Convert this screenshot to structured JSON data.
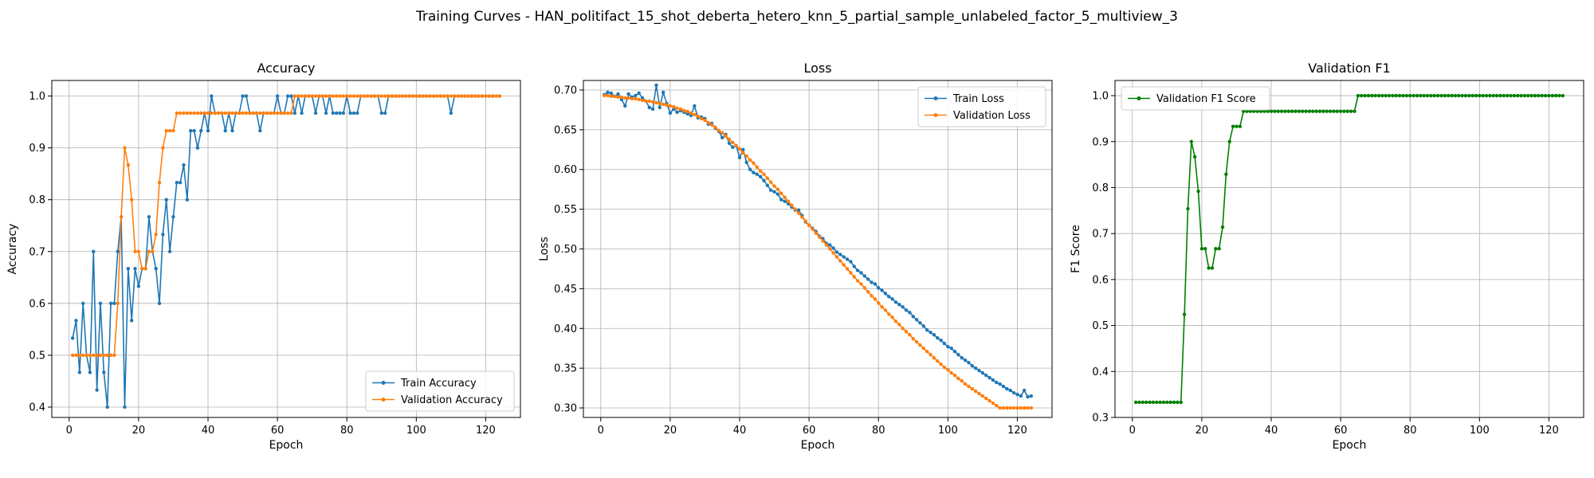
{
  "figure": {
    "suptitle": "Training Curves - HAN_politifact_15_shot_deberta_hetero_knn_5_partial_sample_unlabeled_factor_5_multiview_3"
  },
  "chart_data": [
    {
      "type": "line",
      "title": "Accuracy",
      "xlabel": "Epoch",
      "ylabel": "Accuracy",
      "xlim": [
        -5,
        130
      ],
      "ylim": [
        0.38,
        1.03
      ],
      "xticks": [
        0,
        20,
        40,
        60,
        80,
        100,
        120
      ],
      "yticks": [
        0.4,
        0.5,
        0.6,
        0.7,
        0.8,
        0.9,
        1.0
      ],
      "ytick_labels": [
        "0.4",
        "0.5",
        "0.6",
        "0.7",
        "0.8",
        "0.9",
        "1.0"
      ],
      "grid": true,
      "legend_position": "lower-right",
      "x": [
        1,
        2,
        3,
        4,
        5,
        6,
        7,
        8,
        9,
        10,
        11,
        12,
        13,
        14,
        15,
        16,
        17,
        18,
        19,
        20,
        21,
        22,
        23,
        24,
        25,
        26,
        27,
        28,
        29,
        30,
        31,
        32,
        33,
        34,
        35,
        36,
        37,
        38,
        39,
        40,
        41,
        42,
        43,
        44,
        45,
        46,
        47,
        48,
        49,
        50,
        51,
        52,
        53,
        54,
        55,
        56,
        57,
        58,
        59,
        60,
        61,
        62,
        63,
        64,
        65,
        66,
        67,
        68,
        69,
        70,
        71,
        72,
        73,
        74,
        75,
        76,
        77,
        78,
        79,
        80,
        81,
        82,
        83,
        84,
        85,
        86,
        87,
        88,
        89,
        90,
        91,
        92,
        93,
        94,
        95,
        96,
        97,
        98,
        99,
        100,
        101,
        102,
        103,
        104,
        105,
        106,
        107,
        108,
        109,
        110,
        111,
        112,
        113,
        114,
        115,
        116,
        117,
        118,
        119,
        120,
        121,
        122,
        123,
        124
      ],
      "series": [
        {
          "name": "Train Accuracy",
          "color": "#1f77b4",
          "values": [
            0.533,
            0.567,
            0.467,
            0.6,
            0.5,
            0.467,
            0.7,
            0.433,
            0.6,
            0.467,
            0.4,
            0.6,
            0.6,
            0.7,
            0.767,
            0.4,
            0.667,
            0.567,
            0.667,
            0.633,
            0.667,
            0.667,
            0.767,
            0.7,
            0.667,
            0.6,
            0.733,
            0.8,
            0.7,
            0.767,
            0.833,
            0.833,
            0.867,
            0.8,
            0.933,
            0.933,
            0.9,
            0.933,
            0.967,
            0.933,
            1.0,
            0.967,
            0.967,
            0.967,
            0.933,
            0.967,
            0.933,
            0.967,
            0.967,
            1.0,
            1.0,
            0.967,
            0.967,
            0.967,
            0.933,
            0.967,
            0.967,
            0.967,
            0.967,
            1.0,
            0.967,
            0.967,
            1.0,
            1.0,
            0.967,
            1.0,
            0.967,
            1.0,
            1.0,
            1.0,
            0.967,
            1.0,
            1.0,
            0.967,
            1.0,
            0.967,
            0.967,
            0.967,
            0.967,
            1.0,
            0.967,
            0.967,
            0.967,
            1.0,
            1.0,
            1.0,
            1.0,
            1.0,
            1.0,
            0.967,
            0.967,
            1.0,
            1.0,
            1.0,
            1.0,
            1.0,
            1.0,
            1.0,
            1.0,
            1.0,
            1.0,
            1.0,
            1.0,
            1.0,
            1.0,
            1.0,
            1.0,
            1.0,
            1.0,
            0.967,
            1.0,
            1.0,
            1.0,
            1.0,
            1.0,
            1.0,
            1.0,
            1.0,
            1.0,
            1.0,
            1.0,
            1.0,
            1.0,
            1.0
          ]
        },
        {
          "name": "Validation Accuracy",
          "color": "#ff7f0e",
          "values": [
            0.5,
            0.5,
            0.5,
            0.5,
            0.5,
            0.5,
            0.5,
            0.5,
            0.5,
            0.5,
            0.5,
            0.5,
            0.5,
            0.6,
            0.767,
            0.9,
            0.867,
            0.8,
            0.7,
            0.7,
            0.667,
            0.667,
            0.7,
            0.7,
            0.733,
            0.833,
            0.9,
            0.933,
            0.933,
            0.933,
            0.967,
            0.967,
            0.967,
            0.967,
            0.967,
            0.967,
            0.967,
            0.967,
            0.967,
            0.967,
            0.967,
            0.967,
            0.967,
            0.967,
            0.967,
            0.967,
            0.967,
            0.967,
            0.967,
            0.967,
            0.967,
            0.967,
            0.967,
            0.967,
            0.967,
            0.967,
            0.967,
            0.967,
            0.967,
            0.967,
            0.967,
            0.967,
            0.967,
            0.967,
            1.0,
            1.0,
            1.0,
            1.0,
            1.0,
            1.0,
            1.0,
            1.0,
            1.0,
            1.0,
            1.0,
            1.0,
            1.0,
            1.0,
            1.0,
            1.0,
            1.0,
            1.0,
            1.0,
            1.0,
            1.0,
            1.0,
            1.0,
            1.0,
            1.0,
            1.0,
            1.0,
            1.0,
            1.0,
            1.0,
            1.0,
            1.0,
            1.0,
            1.0,
            1.0,
            1.0,
            1.0,
            1.0,
            1.0,
            1.0,
            1.0,
            1.0,
            1.0,
            1.0,
            1.0,
            1.0,
            1.0,
            1.0,
            1.0,
            1.0,
            1.0,
            1.0,
            1.0,
            1.0,
            1.0,
            1.0,
            1.0,
            1.0,
            1.0,
            1.0
          ]
        }
      ]
    },
    {
      "type": "line",
      "title": "Loss",
      "xlabel": "Epoch",
      "ylabel": "Loss",
      "xlim": [
        -5,
        130
      ],
      "ylim": [
        0.288,
        0.712
      ],
      "xticks": [
        0,
        20,
        40,
        60,
        80,
        100,
        120
      ],
      "yticks": [
        0.3,
        0.35,
        0.4,
        0.45,
        0.5,
        0.55,
        0.6,
        0.65,
        0.7
      ],
      "ytick_labels": [
        "0.30",
        "0.35",
        "0.40",
        "0.45",
        "0.50",
        "0.55",
        "0.60",
        "0.65",
        "0.70"
      ],
      "grid": true,
      "legend_position": "upper-right",
      "x": [
        1,
        2,
        3,
        4,
        5,
        6,
        7,
        8,
        9,
        10,
        11,
        12,
        13,
        14,
        15,
        16,
        17,
        18,
        19,
        20,
        21,
        22,
        23,
        24,
        25,
        26,
        27,
        28,
        29,
        30,
        31,
        32,
        33,
        34,
        35,
        36,
        37,
        38,
        39,
        40,
        41,
        42,
        43,
        44,
        45,
        46,
        47,
        48,
        49,
        50,
        51,
        52,
        53,
        54,
        55,
        56,
        57,
        58,
        59,
        60,
        61,
        62,
        63,
        64,
        65,
        66,
        67,
        68,
        69,
        70,
        71,
        72,
        73,
        74,
        75,
        76,
        77,
        78,
        79,
        80,
        81,
        82,
        83,
        84,
        85,
        86,
        87,
        88,
        89,
        90,
        91,
        92,
        93,
        94,
        95,
        96,
        97,
        98,
        99,
        100,
        101,
        102,
        103,
        104,
        105,
        106,
        107,
        108,
        109,
        110,
        111,
        112,
        113,
        114,
        115,
        116,
        117,
        118,
        119,
        120,
        121,
        122,
        123,
        124
      ],
      "series": [
        {
          "name": "Train Loss",
          "color": "#1f77b4",
          "values": [
            0.694,
            0.697,
            0.696,
            0.692,
            0.695,
            0.688,
            0.68,
            0.695,
            0.691,
            0.693,
            0.696,
            0.69,
            0.686,
            0.678,
            0.676,
            0.706,
            0.678,
            0.697,
            0.683,
            0.671,
            0.676,
            0.672,
            0.674,
            0.672,
            0.67,
            0.668,
            0.68,
            0.665,
            0.666,
            0.664,
            0.657,
            0.658,
            0.652,
            0.648,
            0.64,
            0.644,
            0.633,
            0.628,
            0.63,
            0.615,
            0.625,
            0.609,
            0.6,
            0.596,
            0.594,
            0.591,
            0.586,
            0.58,
            0.574,
            0.572,
            0.569,
            0.562,
            0.56,
            0.557,
            0.553,
            0.549,
            0.549,
            0.542,
            0.534,
            0.53,
            0.526,
            0.522,
            0.516,
            0.513,
            0.507,
            0.505,
            0.501,
            0.496,
            0.493,
            0.49,
            0.487,
            0.484,
            0.478,
            0.473,
            0.47,
            0.466,
            0.462,
            0.458,
            0.456,
            0.451,
            0.448,
            0.444,
            0.44,
            0.437,
            0.433,
            0.43,
            0.427,
            0.423,
            0.42,
            0.415,
            0.411,
            0.407,
            0.403,
            0.398,
            0.395,
            0.392,
            0.388,
            0.385,
            0.381,
            0.377,
            0.375,
            0.371,
            0.367,
            0.363,
            0.36,
            0.357,
            0.353,
            0.35,
            0.347,
            0.344,
            0.341,
            0.338,
            0.335,
            0.332,
            0.33,
            0.327,
            0.324,
            0.322,
            0.319,
            0.317,
            0.315,
            0.322,
            0.314,
            0.315
          ]
        },
        {
          "name": "Validation Loss",
          "color": "#ff7f0e",
          "values": [
            0.693,
            0.693,
            0.692,
            0.692,
            0.691,
            0.691,
            0.69,
            0.69,
            0.689,
            0.689,
            0.688,
            0.687,
            0.686,
            0.686,
            0.685,
            0.684,
            0.683,
            0.682,
            0.681,
            0.68,
            0.679,
            0.677,
            0.676,
            0.674,
            0.673,
            0.671,
            0.669,
            0.667,
            0.664,
            0.662,
            0.659,
            0.656,
            0.653,
            0.649,
            0.646,
            0.642,
            0.638,
            0.634,
            0.63,
            0.626,
            0.621,
            0.617,
            0.612,
            0.608,
            0.603,
            0.598,
            0.594,
            0.589,
            0.584,
            0.579,
            0.575,
            0.57,
            0.565,
            0.56,
            0.555,
            0.55,
            0.545,
            0.54,
            0.535,
            0.53,
            0.525,
            0.52,
            0.515,
            0.51,
            0.505,
            0.5,
            0.495,
            0.49,
            0.485,
            0.48,
            0.475,
            0.47,
            0.465,
            0.46,
            0.456,
            0.451,
            0.446,
            0.441,
            0.437,
            0.432,
            0.427,
            0.423,
            0.418,
            0.414,
            0.409,
            0.405,
            0.4,
            0.396,
            0.392,
            0.387,
            0.383,
            0.379,
            0.375,
            0.371,
            0.367,
            0.363,
            0.359,
            0.355,
            0.351,
            0.348,
            0.344,
            0.341,
            0.337,
            0.334,
            0.33,
            0.327,
            0.324,
            0.321,
            0.318,
            0.315,
            0.312,
            0.309,
            0.306,
            0.303,
            0.3,
            0.3,
            0.3,
            0.3,
            0.3,
            0.3,
            0.3,
            0.3,
            0.3,
            0.3
          ]
        }
      ]
    },
    {
      "type": "line",
      "title": "Validation F1",
      "xlabel": "Epoch",
      "ylabel": "F1 Score",
      "xlim": [
        -5,
        130
      ],
      "ylim": [
        0.3,
        1.033
      ],
      "xticks": [
        0,
        20,
        40,
        60,
        80,
        100,
        120
      ],
      "yticks": [
        0.3,
        0.4,
        0.5,
        0.6,
        0.7,
        0.8,
        0.9,
        1.0
      ],
      "ytick_labels": [
        "0.3",
        "0.4",
        "0.5",
        "0.6",
        "0.7",
        "0.8",
        "0.9",
        "1.0"
      ],
      "grid": true,
      "legend_position": "upper-left",
      "x": [
        1,
        2,
        3,
        4,
        5,
        6,
        7,
        8,
        9,
        10,
        11,
        12,
        13,
        14,
        15,
        16,
        17,
        18,
        19,
        20,
        21,
        22,
        23,
        24,
        25,
        26,
        27,
        28,
        29,
        30,
        31,
        32,
        33,
        34,
        35,
        36,
        37,
        38,
        39,
        40,
        41,
        42,
        43,
        44,
        45,
        46,
        47,
        48,
        49,
        50,
        51,
        52,
        53,
        54,
        55,
        56,
        57,
        58,
        59,
        60,
        61,
        62,
        63,
        64,
        65,
        66,
        67,
        68,
        69,
        70,
        71,
        72,
        73,
        74,
        75,
        76,
        77,
        78,
        79,
        80,
        81,
        82,
        83,
        84,
        85,
        86,
        87,
        88,
        89,
        90,
        91,
        92,
        93,
        94,
        95,
        96,
        97,
        98,
        99,
        100,
        101,
        102,
        103,
        104,
        105,
        106,
        107,
        108,
        109,
        110,
        111,
        112,
        113,
        114,
        115,
        116,
        117,
        118,
        119,
        120,
        121,
        122,
        123,
        124
      ],
      "series": [
        {
          "name": "Validation F1 Score",
          "color": "#008000",
          "values": [
            0.333,
            0.333,
            0.333,
            0.333,
            0.333,
            0.333,
            0.333,
            0.333,
            0.333,
            0.333,
            0.333,
            0.333,
            0.333,
            0.333,
            0.524,
            0.754,
            0.9,
            0.867,
            0.792,
            0.667,
            0.667,
            0.625,
            0.625,
            0.667,
            0.667,
            0.714,
            0.829,
            0.9,
            0.933,
            0.933,
            0.933,
            0.966,
            0.966,
            0.966,
            0.966,
            0.966,
            0.966,
            0.966,
            0.966,
            0.966,
            0.966,
            0.966,
            0.966,
            0.966,
            0.966,
            0.966,
            0.966,
            0.966,
            0.966,
            0.966,
            0.966,
            0.966,
            0.966,
            0.966,
            0.966,
            0.966,
            0.966,
            0.966,
            0.966,
            0.966,
            0.966,
            0.966,
            0.966,
            0.966,
            1.0,
            1.0,
            1.0,
            1.0,
            1.0,
            1.0,
            1.0,
            1.0,
            1.0,
            1.0,
            1.0,
            1.0,
            1.0,
            1.0,
            1.0,
            1.0,
            1.0,
            1.0,
            1.0,
            1.0,
            1.0,
            1.0,
            1.0,
            1.0,
            1.0,
            1.0,
            1.0,
            1.0,
            1.0,
            1.0,
            1.0,
            1.0,
            1.0,
            1.0,
            1.0,
            1.0,
            1.0,
            1.0,
            1.0,
            1.0,
            1.0,
            1.0,
            1.0,
            1.0,
            1.0,
            1.0,
            1.0,
            1.0,
            1.0,
            1.0,
            1.0,
            1.0,
            1.0,
            1.0,
            1.0,
            1.0,
            1.0,
            1.0,
            1.0,
            1.0
          ]
        }
      ]
    }
  ]
}
